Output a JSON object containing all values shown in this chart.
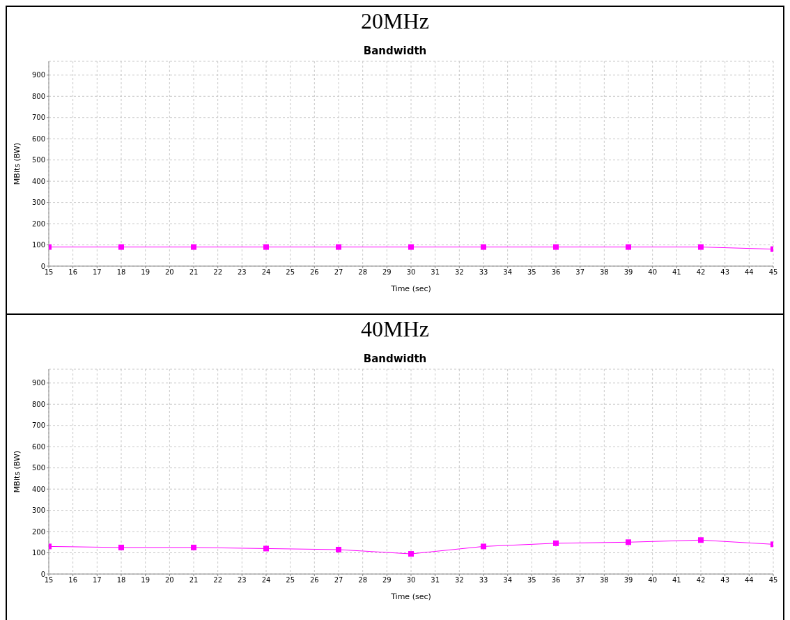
{
  "chart_data": [
    {
      "type": "line",
      "title": "20MHz",
      "subtitle": "Bandwidth",
      "xlabel": "Time (sec)",
      "ylabel": "MBits (BW)",
      "x": [
        15,
        18,
        21,
        24,
        27,
        30,
        33,
        36,
        39,
        42,
        45
      ],
      "series": [
        {
          "color": "#ff00ff",
          "values": [
            90,
            90,
            90,
            90,
            90,
            90,
            90,
            90,
            90,
            90,
            80
          ]
        }
      ],
      "xlim": [
        15,
        45
      ],
      "xticks": [
        15,
        16,
        17,
        18,
        19,
        20,
        21,
        22,
        23,
        24,
        25,
        26,
        27,
        28,
        29,
        30,
        31,
        32,
        33,
        34,
        35,
        36,
        37,
        38,
        39,
        40,
        41,
        42,
        43,
        44,
        45
      ],
      "ylim": [
        0,
        965
      ],
      "yticks": [
        0,
        100,
        200,
        300,
        400,
        500,
        600,
        700,
        800,
        900
      ],
      "grid": true,
      "marker": "square"
    },
    {
      "type": "line",
      "title": "40MHz",
      "subtitle": "Bandwidth",
      "xlabel": "Time (sec)",
      "ylabel": "MBits (BW)",
      "x": [
        15,
        18,
        21,
        24,
        27,
        30,
        33,
        36,
        39,
        42,
        45
      ],
      "series": [
        {
          "color": "#ff00ff",
          "values": [
            130,
            125,
            125,
            120,
            115,
            95,
            130,
            145,
            150,
            160,
            140
          ]
        }
      ],
      "xlim": [
        15,
        45
      ],
      "xticks": [
        15,
        16,
        17,
        18,
        19,
        20,
        21,
        22,
        23,
        24,
        25,
        26,
        27,
        28,
        29,
        30,
        31,
        32,
        33,
        34,
        35,
        36,
        37,
        38,
        39,
        40,
        41,
        42,
        43,
        44,
        45
      ],
      "ylim": [
        0,
        965
      ],
      "yticks": [
        0,
        100,
        200,
        300,
        400,
        500,
        600,
        700,
        800,
        900
      ],
      "grid": true,
      "marker": "square"
    }
  ]
}
